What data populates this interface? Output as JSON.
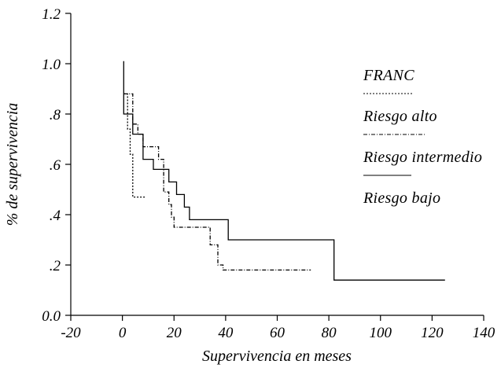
{
  "chart_data": {
    "type": "line",
    "step": true,
    "xlabel": "Supervivencia en meses",
    "ylabel": "% de supervivencia",
    "xlim": [
      -20,
      140
    ],
    "ylim": [
      0,
      1.2
    ],
    "x_ticks": [
      -20,
      0,
      20,
      40,
      60,
      80,
      100,
      120,
      140
    ],
    "x_tick_labels": [
      "-20",
      "0",
      "20",
      "40",
      "60",
      "80",
      "100",
      "120",
      "140"
    ],
    "y_ticks": [
      0,
      0.2,
      0.4,
      0.6,
      0.8,
      1.0,
      1.2
    ],
    "y_tick_labels": [
      "0.0",
      ".2",
      ".4",
      ".6",
      ".8",
      "1.0",
      "1.2"
    ],
    "grid": false,
    "legend_position": "right",
    "series": [
      {
        "name": "FRANC",
        "style": "dotted",
        "color": "#000000",
        "points": [
          [
            0.5,
            0.88
          ],
          [
            2,
            0.88
          ],
          [
            2,
            0.74
          ],
          [
            3,
            0.74
          ],
          [
            3,
            0.64
          ],
          [
            4,
            0.64
          ],
          [
            4,
            0.47
          ],
          [
            9,
            0.47
          ]
        ]
      },
      {
        "name": "Riesgo alto",
        "style": "dash-dot",
        "color": "#000000",
        "points": [
          [
            0.5,
            0.88
          ],
          [
            4,
            0.88
          ],
          [
            4,
            0.76
          ],
          [
            6,
            0.76
          ],
          [
            6,
            0.72
          ],
          [
            8,
            0.72
          ],
          [
            8,
            0.67
          ],
          [
            14,
            0.67
          ],
          [
            14,
            0.62
          ],
          [
            16,
            0.62
          ],
          [
            16,
            0.49
          ],
          [
            18,
            0.49
          ],
          [
            18,
            0.44
          ],
          [
            19,
            0.44
          ],
          [
            19,
            0.39
          ],
          [
            20,
            0.39
          ],
          [
            20,
            0.35
          ],
          [
            34,
            0.35
          ],
          [
            34,
            0.28
          ],
          [
            37,
            0.28
          ],
          [
            37,
            0.2
          ],
          [
            39,
            0.2
          ],
          [
            39,
            0.18
          ],
          [
            73,
            0.18
          ]
        ]
      },
      {
        "name": "Riesgo intermedio",
        "style": "solid",
        "color": "#000000",
        "points": [
          [
            0.5,
            1.01
          ],
          [
            0.5,
            0.8
          ],
          [
            4,
            0.8
          ],
          [
            4,
            0.72
          ],
          [
            8,
            0.72
          ],
          [
            8,
            0.62
          ],
          [
            12,
            0.62
          ],
          [
            12,
            0.58
          ],
          [
            18,
            0.58
          ],
          [
            18,
            0.53
          ],
          [
            21,
            0.53
          ],
          [
            21,
            0.48
          ],
          [
            24,
            0.48
          ],
          [
            24,
            0.43
          ],
          [
            26,
            0.43
          ],
          [
            26,
            0.38
          ],
          [
            41,
            0.38
          ],
          [
            41,
            0.3
          ],
          [
            82,
            0.3
          ],
          [
            82,
            0.14
          ],
          [
            125,
            0.14
          ]
        ]
      },
      {
        "name": "Riesgo bajo",
        "style": "solid",
        "color": "#000000",
        "points": []
      }
    ]
  }
}
